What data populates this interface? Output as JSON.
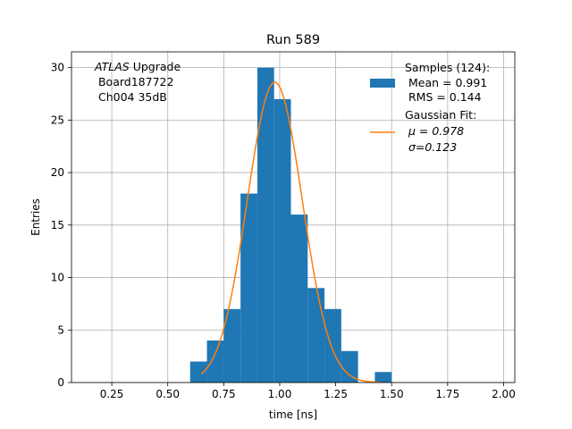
{
  "chart_data": {
    "type": "bar",
    "title": "Run 589",
    "xlabel": "time [ns]",
    "ylabel": "Entries",
    "xlim": [
      0.07,
      2.05
    ],
    "ylim": [
      0,
      31.5
    ],
    "xticks": [
      0.25,
      0.5,
      0.75,
      1.0,
      1.25,
      1.5,
      1.75,
      2.0
    ],
    "xtick_labels": [
      "0.25",
      "0.50",
      "0.75",
      "1.00",
      "1.25",
      "1.50",
      "1.75",
      "2.00"
    ],
    "yticks": [
      0,
      5,
      10,
      15,
      20,
      25,
      30
    ],
    "ytick_labels": [
      "0",
      "5",
      "10",
      "15",
      "20",
      "25",
      "30"
    ],
    "grid": true,
    "legend_position": "top-right",
    "bin_width": 0.075,
    "histogram": {
      "bin_edges": [
        0.6,
        0.675,
        0.75,
        0.825,
        0.9,
        0.975,
        1.05,
        1.125,
        1.2,
        1.275,
        1.35,
        1.425,
        1.5
      ],
      "counts": [
        2,
        4,
        7,
        18,
        30,
        27,
        16,
        9,
        7,
        3,
        0,
        1
      ],
      "color": "#1f77b4"
    },
    "fit": {
      "amplitude": 28.6,
      "mu": 0.978,
      "sigma": 0.123,
      "x_range": [
        0.65,
        1.45
      ],
      "color": "#ff7f0e"
    },
    "legend": {
      "samples_lines": [
        "Samples (124):",
        " Mean = 0.991",
        " RMS = 0.144"
      ],
      "fit_lines": [
        "Gaussian Fit:",
        " μ = 0.978",
        " σ=0.123"
      ]
    },
    "annotation": {
      "line1_italic": "ATLAS",
      "line1_rest": " Upgrade",
      "line2": " Board187722",
      "line3": " Ch004 35dB"
    }
  }
}
